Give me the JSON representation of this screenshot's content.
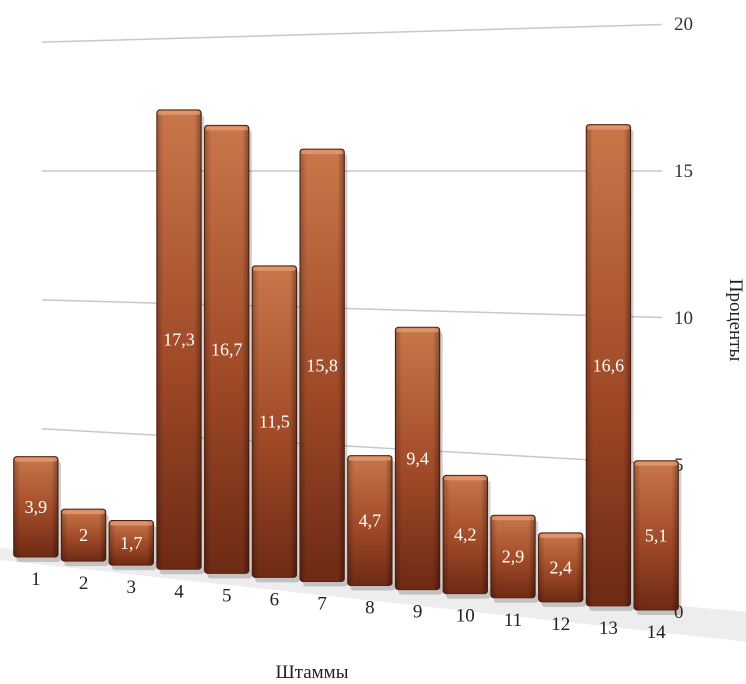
{
  "chart_data": {
    "type": "bar",
    "categories": [
      "1",
      "2",
      "3",
      "4",
      "5",
      "6",
      "7",
      "8",
      "9",
      "10",
      "11",
      "12",
      "13",
      "14"
    ],
    "values": [
      3.9,
      2,
      1.7,
      17.3,
      16.7,
      11.5,
      15.8,
      4.7,
      9.4,
      4.2,
      2.9,
      2.4,
      16.6,
      5.1
    ],
    "data_labels": [
      "3,9",
      "2",
      "1,7",
      "17,3",
      "16,7",
      "11,5",
      "15,8",
      "4,7",
      "9,4",
      "4,2",
      "2,9",
      "2,4",
      "16,6",
      "5,1"
    ],
    "title": "",
    "xlabel": "Штаммы",
    "ylabel": "Проценты",
    "ylim": [
      0,
      20
    ],
    "yticks": [
      "0",
      "5",
      "10",
      "15",
      "20"
    ],
    "y_axis_side": "right",
    "grid": true,
    "legend": "none",
    "colors": {
      "bar_top": "#c8774a",
      "bar_mid": "#a04a28",
      "bar_bottom": "#6e2a14",
      "bar_edge": "#5a200e",
      "grid": "#c8c8c8"
    }
  }
}
